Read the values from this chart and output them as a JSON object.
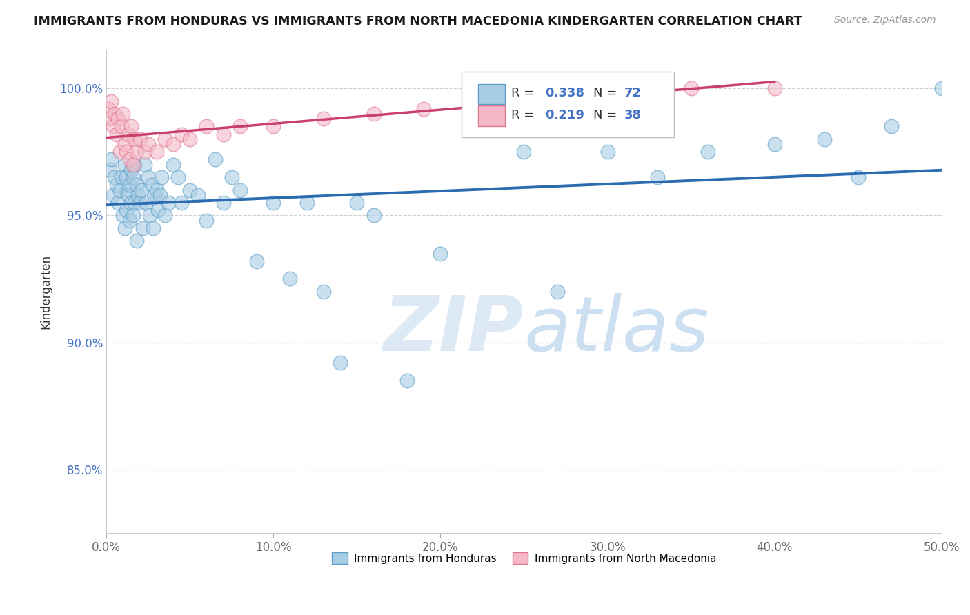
{
  "title": "IMMIGRANTS FROM HONDURAS VS IMMIGRANTS FROM NORTH MACEDONIA KINDERGARTEN CORRELATION CHART",
  "source": "Source: ZipAtlas.com",
  "ylabel": "Kindergarten",
  "xlim": [
    0.0,
    50.0
  ],
  "ylim": [
    82.5,
    101.5
  ],
  "yticks": [
    85.0,
    90.0,
    95.0,
    100.0
  ],
  "ytick_labels": [
    "85.0%",
    "90.0%",
    "95.0%",
    "100.0%"
  ],
  "xticks": [
    0.0,
    10.0,
    20.0,
    30.0,
    40.0,
    50.0
  ],
  "xtick_labels": [
    "0.0%",
    "10.0%",
    "20.0%",
    "30.0%",
    "40.0%",
    "50.0%"
  ],
  "blue_color": "#a8cce4",
  "pink_color": "#f4b8c8",
  "blue_edge_color": "#5a9ec9",
  "pink_edge_color": "#e0748a",
  "blue_line_color": "#2b6cb0",
  "pink_line_color": "#c94070",
  "watermark_color": "#ddeaf5",
  "blue_x": [
    0.2,
    0.3,
    0.4,
    0.5,
    0.6,
    0.7,
    0.8,
    0.9,
    1.0,
    1.1,
    1.1,
    1.2,
    1.2,
    1.3,
    1.3,
    1.4,
    1.4,
    1.5,
    1.5,
    1.6,
    1.6,
    1.7,
    1.7,
    1.8,
    1.8,
    1.9,
    2.0,
    2.1,
    2.2,
    2.3,
    2.4,
    2.5,
    2.6,
    2.7,
    2.8,
    2.9,
    3.0,
    3.1,
    3.2,
    3.3,
    3.5,
    3.7,
    4.0,
    4.3,
    4.5,
    5.0,
    5.5,
    6.0,
    6.5,
    7.0,
    7.5,
    8.0,
    9.0,
    10.0,
    11.0,
    12.0,
    13.0,
    14.0,
    15.0,
    16.0,
    18.0,
    20.0,
    25.0,
    27.0,
    30.0,
    33.0,
    36.0,
    40.0,
    43.0,
    45.0,
    47.0,
    50.0
  ],
  "blue_y": [
    96.8,
    97.2,
    95.8,
    96.5,
    96.2,
    95.5,
    96.0,
    96.5,
    95.0,
    97.0,
    94.5,
    96.5,
    95.2,
    96.0,
    95.8,
    96.2,
    94.8,
    95.5,
    96.8,
    95.0,
    96.5,
    97.0,
    95.5,
    96.2,
    94.0,
    95.8,
    95.5,
    96.0,
    94.5,
    97.0,
    95.5,
    96.5,
    95.0,
    96.2,
    94.5,
    95.8,
    96.0,
    95.2,
    95.8,
    96.5,
    95.0,
    95.5,
    97.0,
    96.5,
    95.5,
    96.0,
    95.8,
    94.8,
    97.2,
    95.5,
    96.5,
    96.0,
    93.2,
    95.5,
    92.5,
    95.5,
    92.0,
    89.2,
    95.5,
    95.0,
    88.5,
    93.5,
    97.5,
    92.0,
    97.5,
    96.5,
    97.5,
    97.8,
    98.0,
    96.5,
    98.5,
    100.0
  ],
  "pink_x": [
    0.1,
    0.2,
    0.3,
    0.4,
    0.5,
    0.6,
    0.7,
    0.8,
    0.9,
    1.0,
    1.1,
    1.2,
    1.3,
    1.4,
    1.5,
    1.6,
    1.7,
    1.8,
    2.0,
    2.3,
    2.5,
    3.0,
    3.5,
    4.0,
    4.5,
    5.0,
    6.0,
    7.0,
    8.0,
    10.0,
    13.0,
    16.0,
    19.0,
    22.0,
    26.0,
    30.0,
    35.0,
    40.0
  ],
  "pink_y": [
    99.2,
    98.8,
    99.5,
    98.5,
    99.0,
    98.2,
    98.8,
    97.5,
    98.5,
    99.0,
    97.8,
    97.5,
    98.2,
    97.2,
    98.5,
    97.0,
    98.0,
    97.5,
    98.0,
    97.5,
    97.8,
    97.5,
    98.0,
    97.8,
    98.2,
    98.0,
    98.5,
    98.2,
    98.5,
    98.5,
    98.8,
    99.0,
    99.2,
    99.5,
    99.8,
    100.0,
    100.0,
    100.0
  ]
}
